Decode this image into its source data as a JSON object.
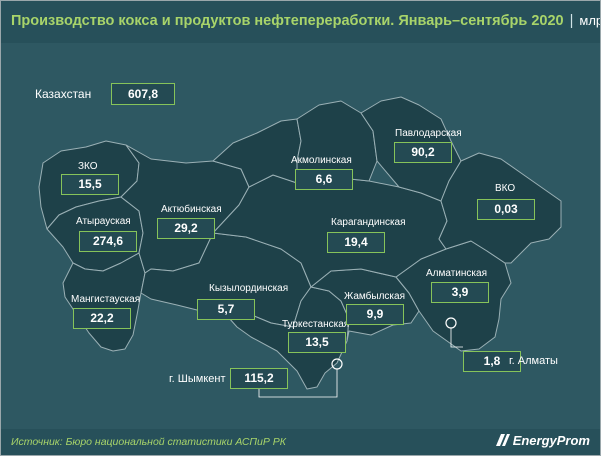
{
  "header": {
    "title": "Производство кокса и продуктов нефтепереработки. Январь–сентябрь 2020",
    "separator": "|",
    "unit": "млрд тг"
  },
  "chart_data": {
    "type": "map",
    "title": "Производство кокса и продуктов нефтепереработки. Январь–сентябрь 2020",
    "unit": "млрд тг",
    "total": {
      "name": "Казахстан",
      "value": "607,8"
    },
    "regions": [
      {
        "name": "ЗКО",
        "value": "15,5"
      },
      {
        "name": "Атырауская",
        "value": "274,6"
      },
      {
        "name": "Актюбинская",
        "value": "29,2"
      },
      {
        "name": "Мангистауская",
        "value": "22,2"
      },
      {
        "name": "Кызылординская",
        "value": "5,7"
      },
      {
        "name": "Туркестанская",
        "value": "13,5"
      },
      {
        "name": "Жамбылская",
        "value": "9,9"
      },
      {
        "name": "Алматинская",
        "value": "3,9"
      },
      {
        "name": "Карагандинская",
        "value": "19,4"
      },
      {
        "name": "Акмолинская",
        "value": "6,6"
      },
      {
        "name": "Павлодарская",
        "value": "90,2"
      },
      {
        "name": "ВКО",
        "value": "0,03"
      },
      {
        "name": "г. Шымкент",
        "value": "115,2"
      },
      {
        "name": "г. Алматы",
        "value": "1,8"
      }
    ]
  },
  "footer": {
    "source": "Источник: Бюро национальной статистики АСПиР РК",
    "logo": "EnergyProm"
  },
  "colors": {
    "background": "#2e5862",
    "map_fill": "#1e4149",
    "border": "#9ab0b5",
    "accent": "#86c35a",
    "title": "#a8d46a"
  }
}
